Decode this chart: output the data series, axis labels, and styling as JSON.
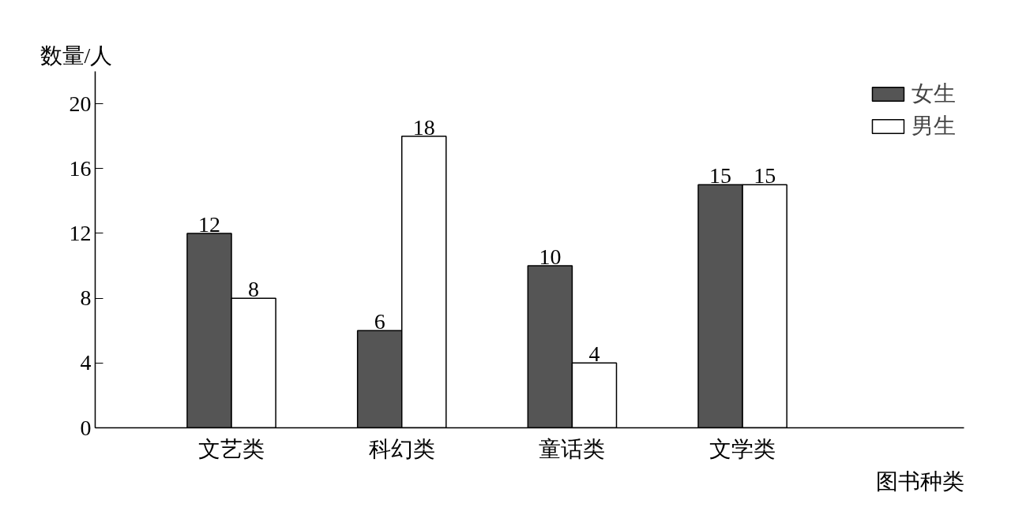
{
  "chart_data": {
    "type": "bar",
    "xlabel": "图书种类",
    "ylabel": "数量/人",
    "categories": [
      "文艺类",
      "科幻类",
      "童话类",
      "文学类"
    ],
    "series": [
      {
        "name": "女生",
        "color": "#555555",
        "values": [
          12,
          6,
          10,
          15
        ]
      },
      {
        "name": "男生",
        "color": "#ffffff",
        "values": [
          8,
          18,
          4,
          15
        ]
      }
    ],
    "ylim": [
      0,
      22
    ],
    "yticks": [
      0,
      4,
      8,
      12,
      16,
      20
    ],
    "data_labels": true,
    "grid": false,
    "legend": "top right"
  }
}
